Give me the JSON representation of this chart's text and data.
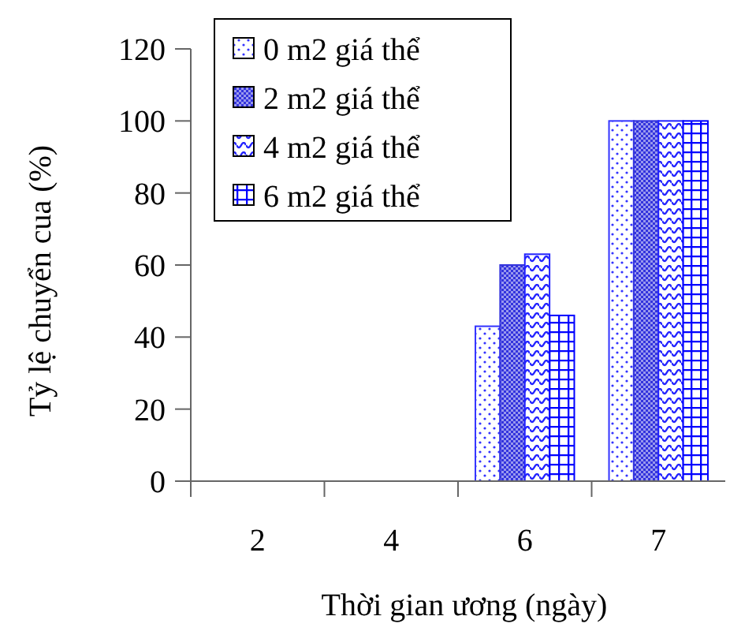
{
  "chart_data": {
    "type": "bar",
    "xlabel": "Thời gian ương (ngày)",
    "ylabel": "Tỷ lệ chuyển cua (%)",
    "categories": [
      "2",
      "4",
      "6",
      "7"
    ],
    "series": [
      {
        "name": "0 m2 giá thể",
        "color": "#3333ff",
        "values": [
          0,
          0,
          43,
          100
        ]
      },
      {
        "name": "2 m2 giá thể",
        "color": "#3333dd",
        "values": [
          0,
          0,
          60,
          100
        ]
      },
      {
        "name": "4 m2 giá thể",
        "color": "#2222ff",
        "values": [
          0,
          0,
          63,
          100
        ]
      },
      {
        "name": "6 m2 giá thể",
        "color": "#0000ff",
        "values": [
          0,
          0,
          46,
          100
        ]
      }
    ],
    "ylim": [
      0,
      120
    ],
    "yticks": [
      0,
      20,
      40,
      60,
      80,
      100,
      120
    ],
    "grid": false,
    "legend": "top left"
  }
}
